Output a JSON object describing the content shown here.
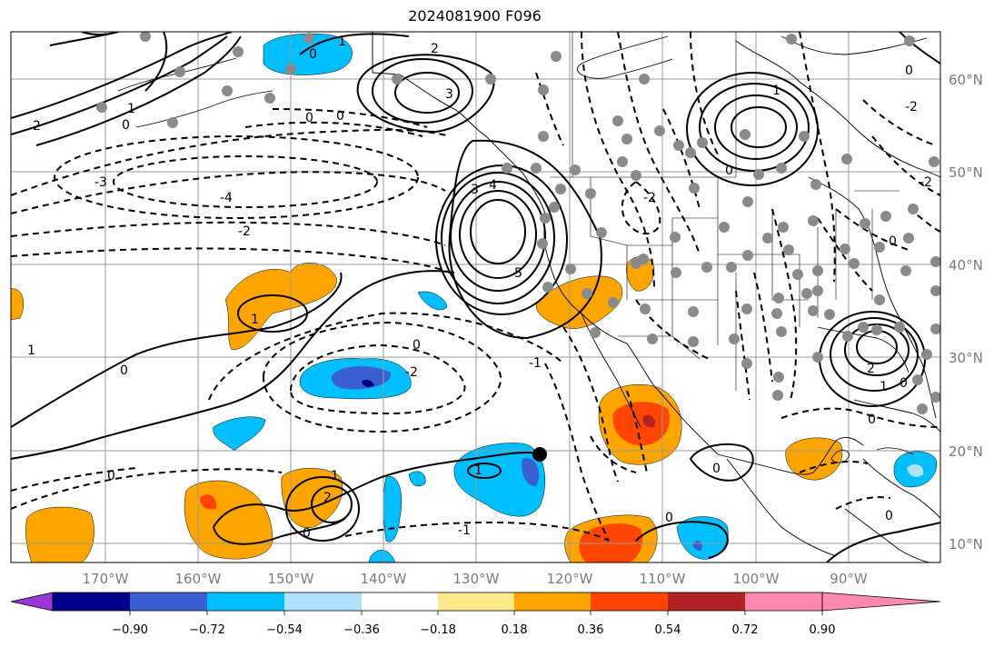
{
  "title": "2024081900 F096",
  "lon_labels": [
    "170°W",
    "160°W",
    "150°W",
    "140°W",
    "130°W",
    "120°W",
    "110°W",
    "100°W",
    "90°W"
  ],
  "lat_labels": [
    "60°N",
    "50°N",
    "40°N",
    "30°N",
    "20°N",
    "10°N"
  ],
  "colorbar": {
    "colors": [
      "#9a35d6",
      "#00008b",
      "#3a5fd0",
      "#00bfff",
      "#b0e2ff",
      "#ffffff",
      "#ffe88a",
      "#ffa500",
      "#ff4500",
      "#b22222",
      "#ff88b0"
    ],
    "tick_labels": [
      "−0.90",
      "−0.72",
      "−0.54",
      "−0.36",
      "−0.18",
      "0.18",
      "0.36",
      "0.54",
      "0.72",
      "0.90"
    ]
  },
  "contour_labels": [
    "0",
    "1",
    "2",
    "3",
    "4",
    "5",
    "-1",
    "-2",
    "-3",
    "-4"
  ]
}
